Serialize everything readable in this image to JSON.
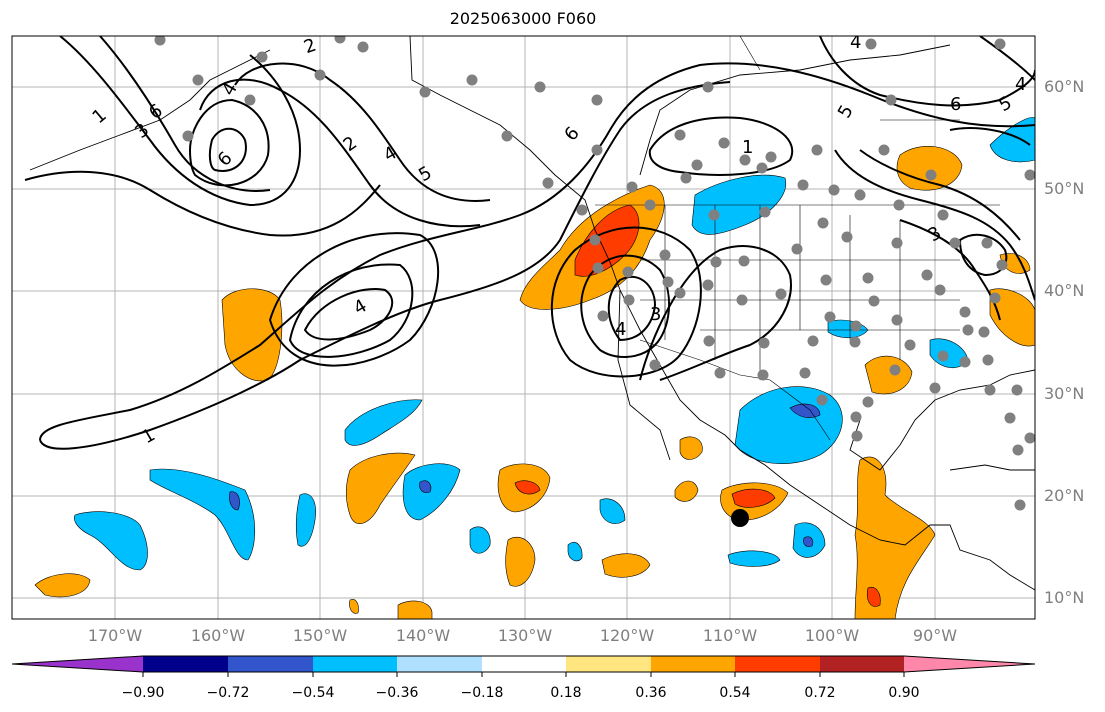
{
  "title": "2025063000 F060",
  "lon_labels": [
    "170°W",
    "160°W",
    "150°W",
    "140°W",
    "130°W",
    "120°W",
    "110°W",
    "100°W",
    "90°W"
  ],
  "lat_labels": [
    "60°N",
    "50°N",
    "40°N",
    "30°N",
    "20°N",
    "10°N"
  ],
  "colorbar": {
    "ticks": [
      "−0.90",
      "−0.72",
      "−0.54",
      "−0.36",
      "−0.18",
      "0.18",
      "0.36",
      "0.54",
      "0.72",
      "0.90"
    ],
    "colors": [
      "#9933cc",
      "#00008b",
      "#3355cc",
      "#00bfff",
      "#b0e0ff",
      "#ffffff",
      "#ffe680",
      "#ffa500",
      "#ff3c00",
      "#b22222",
      "#ff88aa"
    ]
  },
  "contour_labels": [
    "1",
    "2",
    "3",
    "4",
    "5",
    "6"
  ],
  "colors": {
    "contour": "#000000",
    "grid": "#b4b4b4",
    "station": "#808080",
    "marker": "#000000"
  }
}
